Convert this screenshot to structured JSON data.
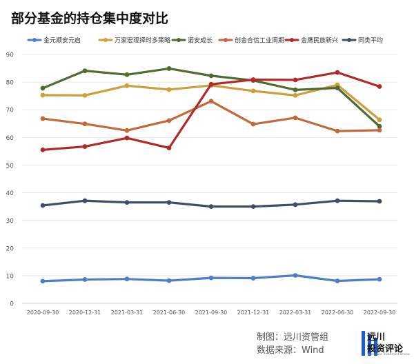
{
  "title": "部分基金的持仓集中度对比",
  "footer": {
    "made_by": "制图：远川资管组",
    "source": "数据来源：Wind"
  },
  "brand": {
    "name": "远川",
    "sub": "投资评论",
    "en": "YuanChuan Investment Review"
  },
  "chart_data": {
    "type": "line",
    "title": "",
    "xlabel": "",
    "ylabel": "",
    "ylim": [
      0,
      90
    ],
    "yticks": [
      0,
      10,
      20,
      30,
      40,
      50,
      60,
      70,
      80,
      90
    ],
    "grid": true,
    "legend_position": "top",
    "categories": [
      "2020-09-30",
      "2020-12-31",
      "2021-03-31",
      "2021-06-30",
      "2021-09-30",
      "2021-12-31",
      "2022-03-31",
      "2022-06-30",
      "2022-09-30"
    ],
    "series": [
      {
        "name": "金元顺安元启",
        "color": "#4e7fc4",
        "values": [
          8.0,
          8.6,
          8.8,
          8.2,
          9.2,
          9.1,
          10.1,
          8.1,
          8.7
        ]
      },
      {
        "name": "万家宏观择时多策略",
        "color": "#c9a03c",
        "values": [
          75.3,
          75.2,
          78.7,
          77.3,
          78.8,
          76.8,
          75.2,
          79.0,
          66.4
        ]
      },
      {
        "name": "诺安成长",
        "color": "#4e6b30",
        "values": [
          77.8,
          84.1,
          82.7,
          84.9,
          82.3,
          80.6,
          77.2,
          77.9,
          64.0
        ]
      },
      {
        "name": "创金合信工业周期",
        "color": "#c0693a",
        "values": [
          66.8,
          64.9,
          62.5,
          66.1,
          73.1,
          64.8,
          67.1,
          62.3,
          62.6
        ]
      },
      {
        "name": "金鹰民族新兴",
        "color": "#b02a2a",
        "values": [
          55.5,
          56.7,
          59.8,
          56.2,
          79.2,
          80.9,
          80.8,
          83.5,
          78.4
        ]
      },
      {
        "name": "同类平均",
        "color": "#3d4e66",
        "values": [
          35.4,
          37.1,
          36.5,
          36.5,
          35.0,
          35.0,
          35.7,
          37.1,
          36.9
        ]
      }
    ]
  }
}
